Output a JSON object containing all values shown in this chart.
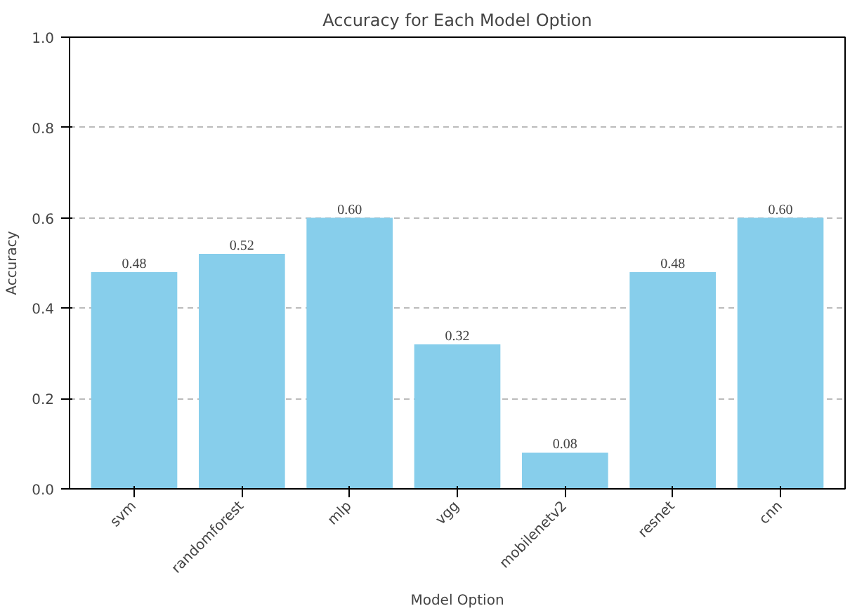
{
  "chart_data": {
    "type": "bar",
    "title": "Accuracy for Each Model Option",
    "xlabel": "Model Option",
    "ylabel": "Accuracy",
    "categories": [
      "svm",
      "randomforest",
      "mlp",
      "vgg",
      "mobilenetv2",
      "resnet",
      "cnn"
    ],
    "values": [
      0.48,
      0.52,
      0.6,
      0.32,
      0.08,
      0.48,
      0.6
    ],
    "value_labels": [
      "0.48",
      "0.52",
      "0.60",
      "0.32",
      "0.08",
      "0.48",
      "0.60"
    ],
    "color": "#87ceeb",
    "ylim": [
      0,
      1
    ],
    "yticks": [
      {
        "value": 0,
        "label": "0.0"
      },
      {
        "value": 0.2,
        "label": "0.2"
      },
      {
        "value": 0.4,
        "label": "0.4"
      },
      {
        "value": 0.6,
        "label": "0.6"
      },
      {
        "value": 0.8,
        "label": "0.8"
      },
      {
        "value": 1,
        "label": "1.0"
      }
    ],
    "grid": "y",
    "line_style": "dashed"
  }
}
